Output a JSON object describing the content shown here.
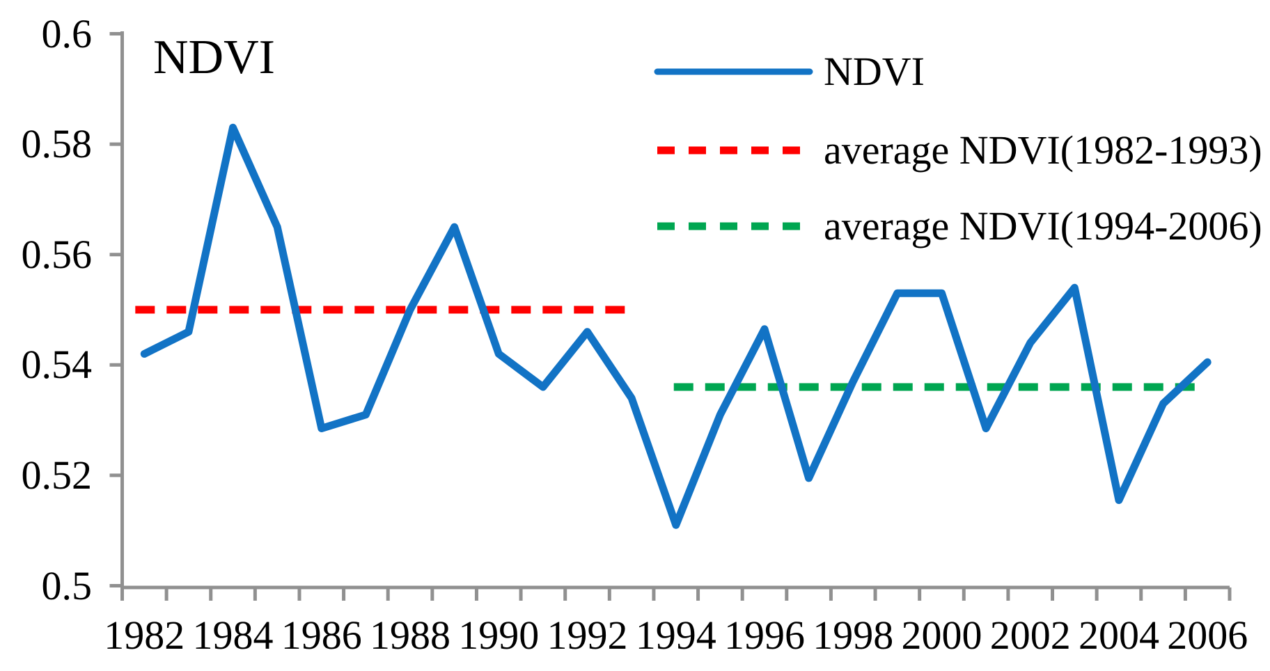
{
  "chart_data": {
    "type": "line",
    "title": "NDVI",
    "x": [
      1982,
      1983,
      1984,
      1985,
      1986,
      1987,
      1988,
      1989,
      1990,
      1991,
      1992,
      1993,
      1994,
      1995,
      1996,
      1997,
      1998,
      1999,
      2000,
      2001,
      2002,
      2003,
      2004,
      2005,
      2006
    ],
    "series": [
      {
        "name": "NDVI",
        "type": "line",
        "style": "solid",
        "color": "#1273C5",
        "values": [
          0.542,
          0.546,
          0.583,
          0.565,
          0.5285,
          0.531,
          0.55,
          0.565,
          0.542,
          0.536,
          0.546,
          0.534,
          0.511,
          0.531,
          0.5465,
          0.5195,
          0.537,
          0.553,
          0.553,
          0.5285,
          0.544,
          0.554,
          0.5155,
          0.533,
          0.5405
        ]
      },
      {
        "name": "average NDVI(1982-1993)",
        "type": "hline",
        "style": "dashed",
        "color": "#FF0000",
        "value": 0.55,
        "span": [
          1982,
          1993
        ]
      },
      {
        "name": "average NDVI(1994-2006)",
        "type": "hline",
        "style": "dashed",
        "color": "#00A651",
        "value": 0.536,
        "span": [
          1994,
          2006
        ]
      }
    ],
    "ylim": [
      0.5,
      0.6
    ],
    "y_ticks": [
      "0.6",
      "0.58",
      "0.56",
      "0.54",
      "0.52",
      "0.5"
    ],
    "y_tick_values": [
      0.6,
      0.58,
      0.56,
      0.54,
      0.52,
      0.5
    ],
    "x_tick_labels": [
      "1982",
      "1984",
      "1986",
      "1988",
      "1990",
      "1992",
      "1994",
      "1996",
      "1998",
      "2000",
      "2002",
      "2004",
      "2006"
    ],
    "x_tick_years": [
      1982,
      1984,
      1986,
      1988,
      1990,
      1992,
      1994,
      1996,
      1998,
      2000,
      2002,
      2004,
      2006
    ],
    "grid": false,
    "legend_position": "top-right",
    "axis_color": "#909090",
    "text_color": "#000000"
  }
}
